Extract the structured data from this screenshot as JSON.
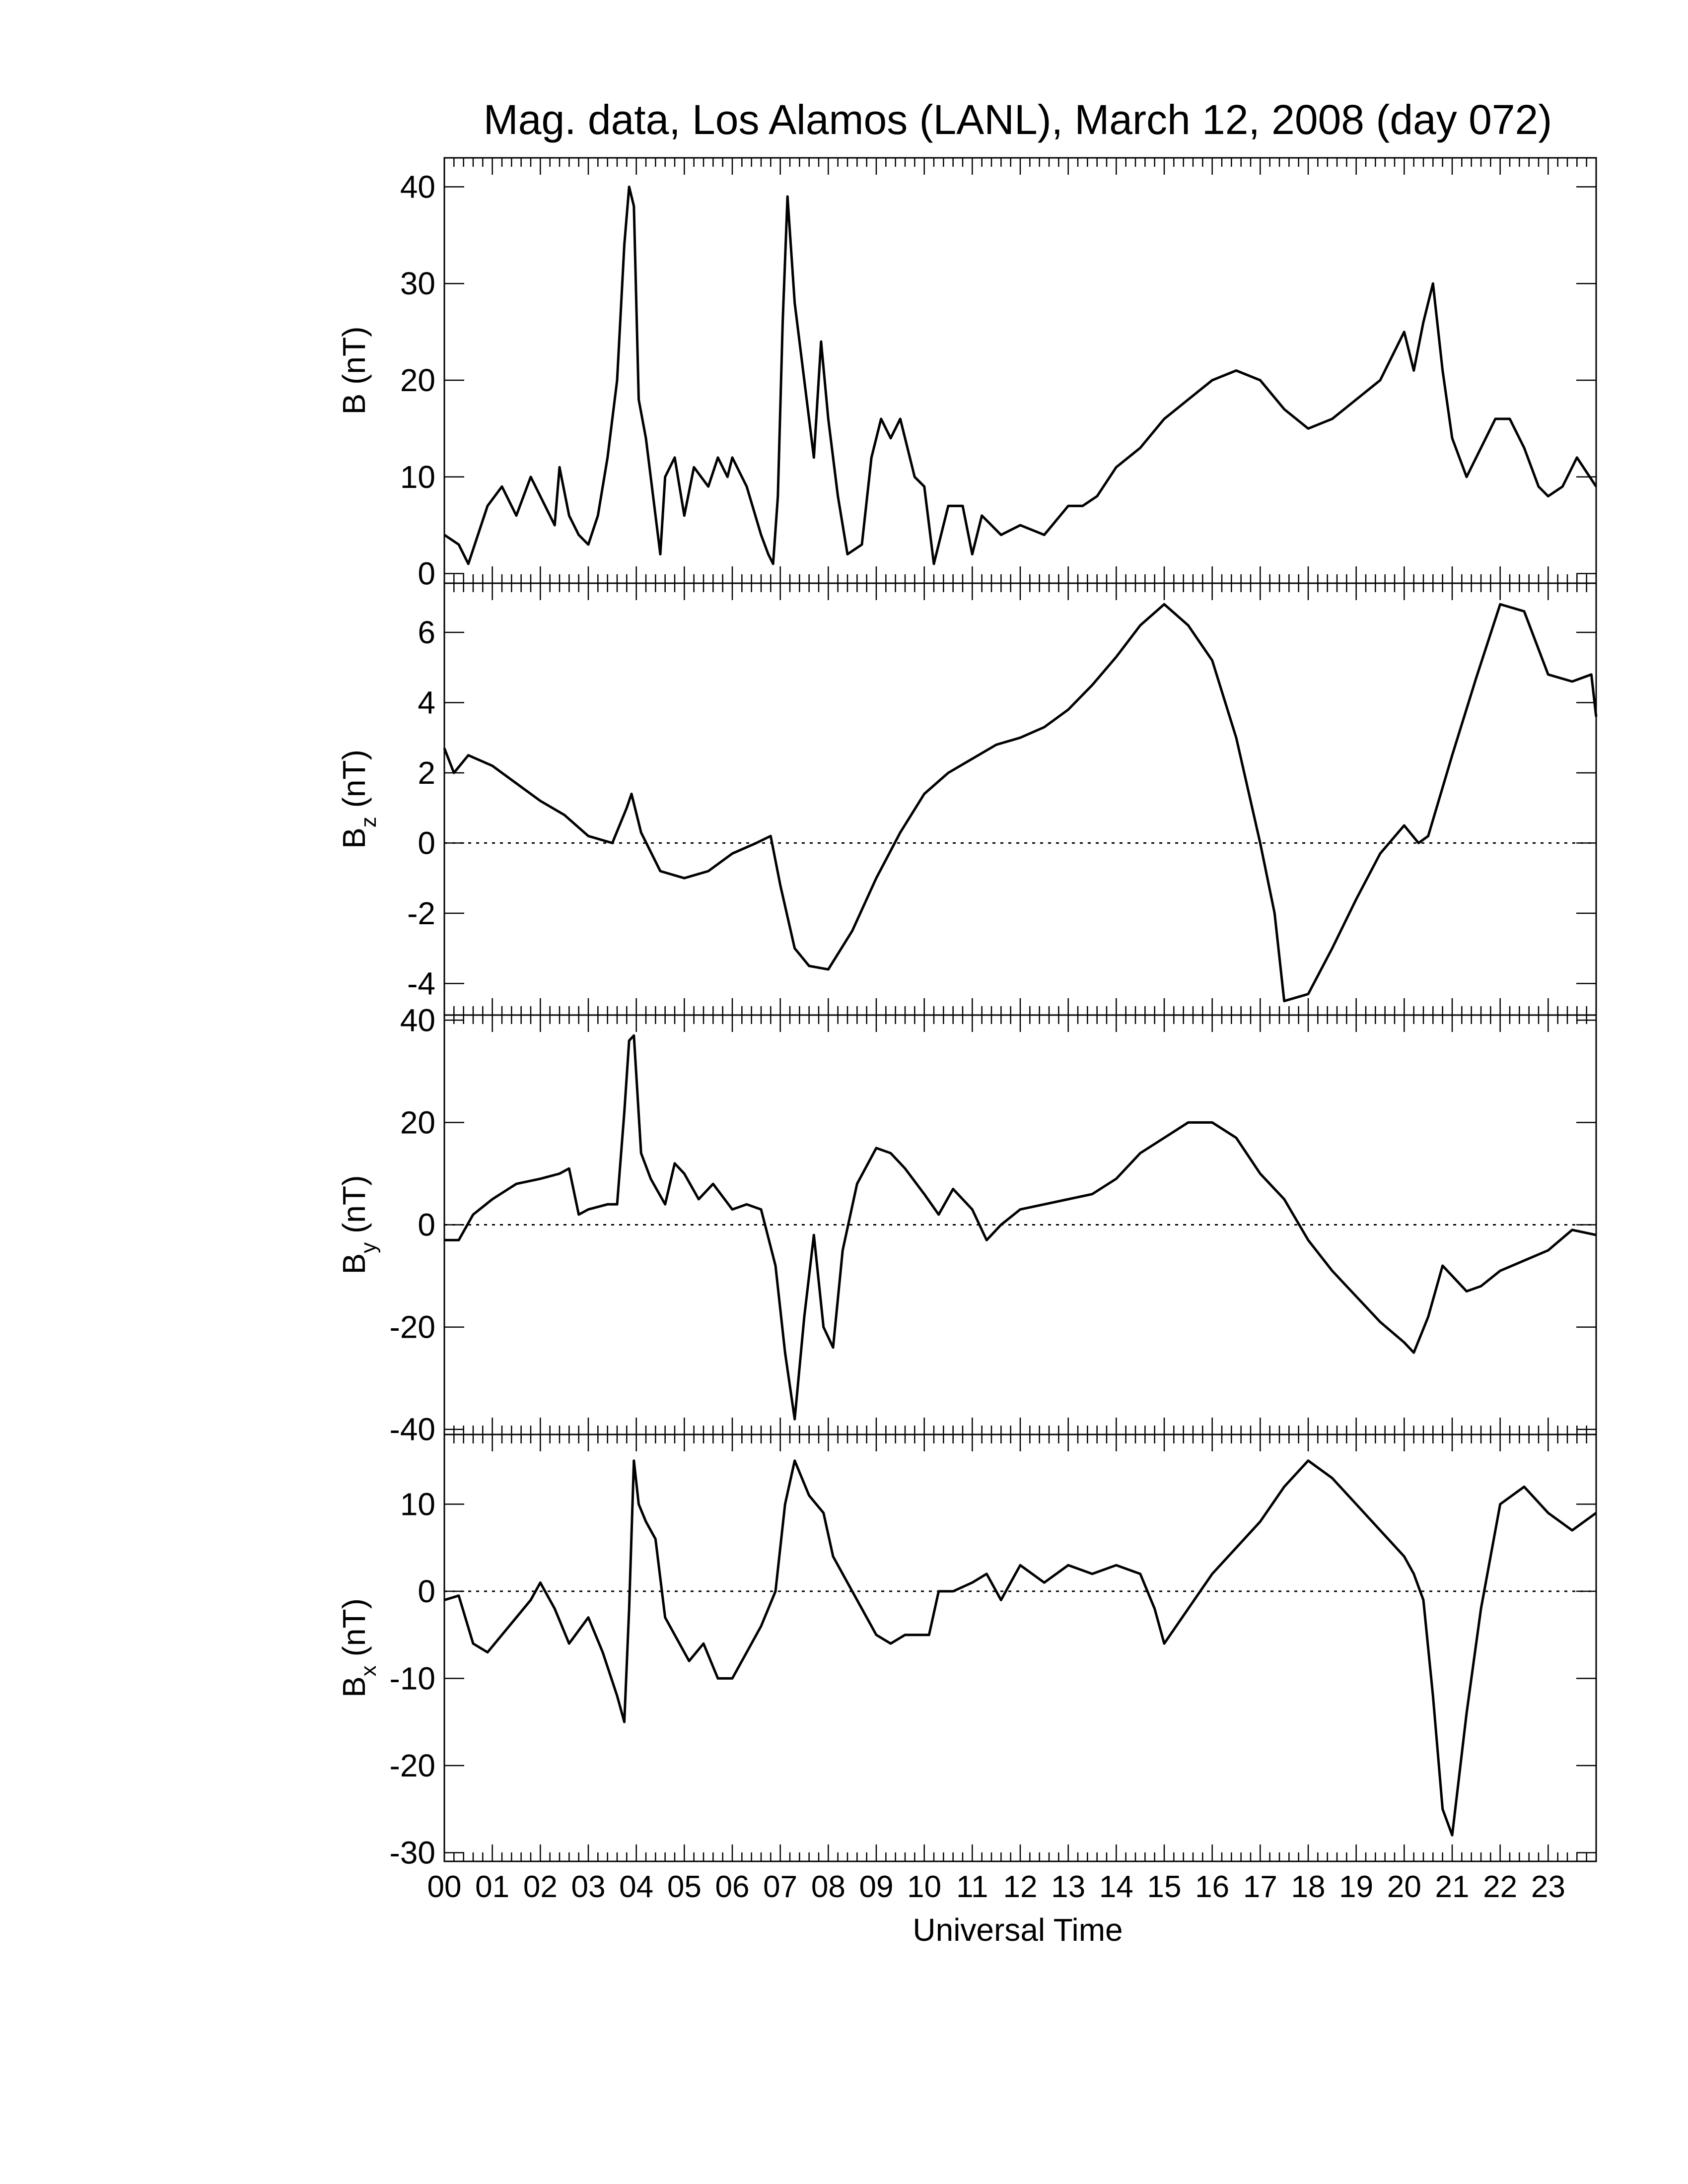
{
  "title": "Mag. data, Los Alamos (LANL), March 12, 2008 (day 072)",
  "xlabel": "Universal Time",
  "x_tick_labels": [
    "00",
    "01",
    "02",
    "03",
    "04",
    "05",
    "06",
    "07",
    "08",
    "09",
    "10",
    "11",
    "12",
    "13",
    "14",
    "15",
    "16",
    "17",
    "18",
    "19",
    "20",
    "21",
    "22",
    "23"
  ],
  "line_color": "#000000",
  "chart_data": [
    {
      "type": "line",
      "ylabel": "B (nT)",
      "ylabel_main": "B",
      "ylabel_sub": "",
      "ylabel_unit": "(nT)",
      "xlim": [
        0,
        24
      ],
      "ylim": [
        -1,
        43
      ],
      "yticks": [
        0,
        10,
        20,
        30,
        40
      ],
      "zero_line": false,
      "x": [
        0,
        0.3,
        0.5,
        0.9,
        1.2,
        1.5,
        1.8,
        2.0,
        2.3,
        2.4,
        2.6,
        2.8,
        3.0,
        3.2,
        3.4,
        3.6,
        3.75,
        3.85,
        3.95,
        4.05,
        4.2,
        4.5,
        4.6,
        4.8,
        5.0,
        5.2,
        5.5,
        5.7,
        5.9,
        6.0,
        6.3,
        6.6,
        6.75,
        6.85,
        6.95,
        7.05,
        7.15,
        7.3,
        7.5,
        7.7,
        7.85,
        8.0,
        8.2,
        8.4,
        8.7,
        8.9,
        9.1,
        9.3,
        9.5,
        9.8,
        10.0,
        10.2,
        10.5,
        10.8,
        11.0,
        11.2,
        11.6,
        12.0,
        12.5,
        13.0,
        13.3,
        13.6,
        14.0,
        14.5,
        15.0,
        15.5,
        16.0,
        16.5,
        17.0,
        17.5,
        18.0,
        18.5,
        19.0,
        19.5,
        20.0,
        20.2,
        20.4,
        20.6,
        20.8,
        21.0,
        21.3,
        21.6,
        21.9,
        22.2,
        22.5,
        22.8,
        23.0,
        23.3,
        23.6,
        24.0
      ],
      "y": [
        4,
        3,
        1,
        7,
        9,
        6,
        10,
        8,
        5,
        11,
        6,
        4,
        3,
        6,
        12,
        20,
        34,
        40,
        38,
        18,
        14,
        2,
        10,
        12,
        6,
        11,
        9,
        12,
        10,
        12,
        9,
        4,
        2,
        1,
        8,
        26,
        39,
        28,
        20,
        12,
        24,
        16,
        8,
        2,
        3,
        12,
        16,
        14,
        16,
        10,
        9,
        1,
        7,
        7,
        2,
        6,
        4,
        5,
        4,
        7,
        7,
        8,
        11,
        13,
        16,
        18,
        20,
        21,
        20,
        17,
        15,
        16,
        18,
        20,
        25,
        21,
        26,
        30,
        21,
        14,
        10,
        13,
        16,
        16,
        13,
        9,
        8,
        9,
        12,
        9
      ]
    },
    {
      "type": "line",
      "ylabel": "Bz (nT)",
      "ylabel_main": "B",
      "ylabel_sub": "z",
      "ylabel_unit": "(nT)",
      "xlim": [
        0,
        24
      ],
      "ylim": [
        -4.9,
        7.4
      ],
      "yticks": [
        -4,
        -2,
        0,
        2,
        4,
        6
      ],
      "zero_line": true,
      "x": [
        0,
        0.2,
        0.5,
        1.0,
        1.5,
        2.0,
        2.5,
        3.0,
        3.5,
        3.8,
        3.9,
        4.1,
        4.5,
        5.0,
        5.5,
        6.0,
        6.5,
        6.8,
        7.0,
        7.3,
        7.6,
        8.0,
        8.5,
        9.0,
        9.5,
        10.0,
        10.5,
        11.0,
        11.5,
        12.0,
        12.5,
        13.0,
        13.5,
        14.0,
        14.5,
        15.0,
        15.5,
        16.0,
        16.5,
        17.0,
        17.3,
        17.5,
        18.0,
        18.5,
        19.0,
        19.5,
        20.0,
        20.3,
        20.5,
        21.0,
        21.5,
        22.0,
        22.5,
        23.0,
        23.5,
        23.9,
        24.0
      ],
      "y": [
        2.7,
        2.0,
        2.5,
        2.2,
        1.7,
        1.2,
        0.8,
        0.2,
        0.0,
        1.0,
        1.4,
        0.3,
        -0.8,
        -1.0,
        -0.8,
        -0.3,
        0.0,
        0.2,
        -1.2,
        -3.0,
        -3.5,
        -3.6,
        -2.5,
        -1.0,
        0.3,
        1.4,
        2.0,
        2.4,
        2.8,
        3.0,
        3.3,
        3.8,
        4.5,
        5.3,
        6.2,
        6.8,
        6.2,
        5.2,
        3.0,
        0.0,
        -2.0,
        -4.5,
        -4.3,
        -3.0,
        -1.6,
        -0.3,
        0.5,
        0.0,
        0.2,
        2.5,
        4.7,
        6.8,
        6.6,
        4.8,
        4.6,
        4.8,
        3.6
      ]
    },
    {
      "type": "line",
      "ylabel": "By (nT)",
      "ylabel_main": "B",
      "ylabel_sub": "y",
      "ylabel_unit": "(nT)",
      "xlim": [
        0,
        24
      ],
      "ylim": [
        -41,
        41
      ],
      "yticks": [
        -40,
        -20,
        0,
        20,
        40
      ],
      "zero_line": true,
      "x": [
        0,
        0.3,
        0.6,
        1.0,
        1.5,
        2.0,
        2.4,
        2.6,
        2.8,
        3.0,
        3.4,
        3.6,
        3.75,
        3.85,
        3.95,
        4.1,
        4.3,
        4.6,
        4.8,
        5.0,
        5.3,
        5.6,
        6.0,
        6.3,
        6.6,
        6.9,
        7.1,
        7.3,
        7.5,
        7.7,
        7.9,
        8.1,
        8.3,
        8.6,
        9.0,
        9.3,
        9.6,
        10.0,
        10.3,
        10.6,
        11.0,
        11.3,
        11.6,
        12.0,
        12.5,
        13.0,
        13.5,
        14.0,
        14.5,
        15.0,
        15.5,
        16.0,
        16.5,
        17.0,
        17.5,
        18.0,
        18.5,
        19.0,
        19.5,
        20.0,
        20.2,
        20.5,
        20.8,
        21.0,
        21.3,
        21.6,
        22.0,
        22.5,
        23.0,
        23.5,
        24.0
      ],
      "y": [
        -3,
        -3,
        2,
        5,
        8,
        9,
        10,
        11,
        2,
        3,
        4,
        4,
        22,
        36,
        37,
        14,
        9,
        4,
        12,
        10,
        5,
        8,
        3,
        4,
        3,
        -8,
        -25,
        -38,
        -18,
        -2,
        -20,
        -24,
        -5,
        8,
        15,
        14,
        11,
        6,
        2,
        7,
        3,
        -3,
        0,
        3,
        4,
        5,
        6,
        9,
        14,
        17,
        20,
        20,
        17,
        10,
        5,
        -3,
        -9,
        -14,
        -19,
        -23,
        -25,
        -18,
        -8,
        -10,
        -13,
        -12,
        -9,
        -7,
        -5,
        -1,
        -2
      ]
    },
    {
      "type": "line",
      "ylabel": "Bx (nT)",
      "ylabel_main": "B",
      "ylabel_sub": "x",
      "ylabel_unit": "(nT)",
      "xlim": [
        0,
        24
      ],
      "ylim": [
        -31,
        18
      ],
      "yticks": [
        -30,
        -20,
        -10,
        0,
        10
      ],
      "zero_line": true,
      "x": [
        0,
        0.3,
        0.6,
        0.9,
        1.2,
        1.5,
        1.8,
        2.0,
        2.3,
        2.6,
        3.0,
        3.3,
        3.6,
        3.75,
        3.85,
        3.95,
        4.05,
        4.2,
        4.4,
        4.6,
        4.8,
        5.1,
        5.4,
        5.7,
        6.0,
        6.3,
        6.6,
        6.9,
        7.1,
        7.3,
        7.6,
        7.9,
        8.1,
        8.4,
        8.7,
        9.0,
        9.3,
        9.6,
        9.9,
        10.1,
        10.3,
        10.6,
        11.0,
        11.3,
        11.6,
        12.0,
        12.5,
        13.0,
        13.5,
        14.0,
        14.5,
        14.8,
        15.0,
        15.5,
        16.0,
        16.5,
        17.0,
        17.5,
        18.0,
        18.5,
        19.0,
        19.5,
        20.0,
        20.2,
        20.4,
        20.6,
        20.8,
        21.0,
        21.3,
        21.6,
        22.0,
        22.5,
        23.0,
        23.5,
        24.0
      ],
      "y": [
        -1,
        -0.5,
        -6,
        -7,
        -5,
        -3,
        -1,
        1,
        -2,
        -6,
        -3,
        -7,
        -12,
        -15,
        -2,
        15,
        10,
        8,
        6,
        -3,
        -5,
        -8,
        -6,
        -10,
        -10,
        -7,
        -4,
        0,
        10,
        15,
        11,
        9,
        4,
        1,
        -2,
        -5,
        -6,
        -5,
        -5,
        -5,
        0,
        0,
        1,
        2,
        -1,
        3,
        1,
        3,
        2,
        3,
        2,
        -2,
        -6,
        -2,
        2,
        5,
        8,
        12,
        15,
        13,
        10,
        7,
        4,
        2,
        -1,
        -12,
        -25,
        -28,
        -14,
        -2,
        10,
        12,
        9,
        7,
        9
      ]
    }
  ]
}
